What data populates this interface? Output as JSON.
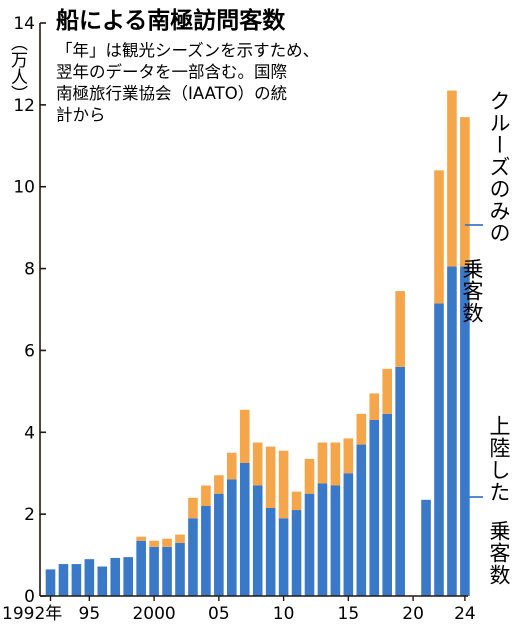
{
  "chart_data": {
    "type": "bar",
    "stacked": true,
    "title": "船による南極訪問客数",
    "note_lines": [
      "「年」は観光シーズンを示すため、",
      "翌年のデータを一部含む。国際",
      "南極旅行業協会（IAATO）の統",
      "計から"
    ],
    "yunit": "（万人）",
    "ylim": [
      0,
      14
    ],
    "yticks": [
      0,
      2,
      4,
      6,
      8,
      10,
      12,
      14
    ],
    "xticks": [
      {
        "year": 1992,
        "label": "1992年"
      },
      {
        "year": 1995,
        "label": "95"
      },
      {
        "year": 2000,
        "label": "2000"
      },
      {
        "year": 2005,
        "label": "05"
      },
      {
        "year": 2010,
        "label": "10"
      },
      {
        "year": 2015,
        "label": "15"
      },
      {
        "year": 2020,
        "label": "20"
      },
      {
        "year": 2024,
        "label": "24"
      }
    ],
    "years": [
      1992,
      1993,
      1994,
      1995,
      1996,
      1997,
      1998,
      1999,
      2000,
      2001,
      2002,
      2003,
      2004,
      2005,
      2006,
      2007,
      2008,
      2009,
      2010,
      2011,
      2012,
      2013,
      2014,
      2015,
      2016,
      2017,
      2018,
      2019,
      2020,
      2021,
      2022,
      2023,
      2024
    ],
    "series": [
      {
        "name": "上陸した乗客数",
        "color": "#3a78c8",
        "values": [
          0.65,
          0.78,
          0.78,
          0.9,
          0.72,
          0.93,
          0.95,
          1.35,
          1.2,
          1.2,
          1.3,
          1.9,
          2.2,
          2.5,
          2.85,
          3.25,
          2.7,
          2.15,
          1.9,
          2.1,
          2.5,
          2.75,
          2.7,
          3.0,
          3.7,
          4.3,
          4.45,
          5.6,
          null,
          2.35,
          7.15,
          8.05,
          8.05
        ]
      },
      {
        "name": "クルーズのみの乗客数",
        "color": "#f5a64a",
        "values": [
          0,
          0,
          0,
          0,
          0,
          0,
          0,
          0.1,
          0.15,
          0.2,
          0.2,
          0.5,
          0.5,
          0.45,
          0.65,
          1.3,
          1.05,
          1.5,
          1.65,
          0.45,
          0.85,
          1.0,
          1.05,
          0.85,
          0.75,
          0.65,
          1.1,
          1.85,
          null,
          0,
          3.25,
          4.3,
          3.65
        ]
      }
    ],
    "colors": {
      "axis": "#231815",
      "annotation_line": "#3a78c8"
    }
  }
}
